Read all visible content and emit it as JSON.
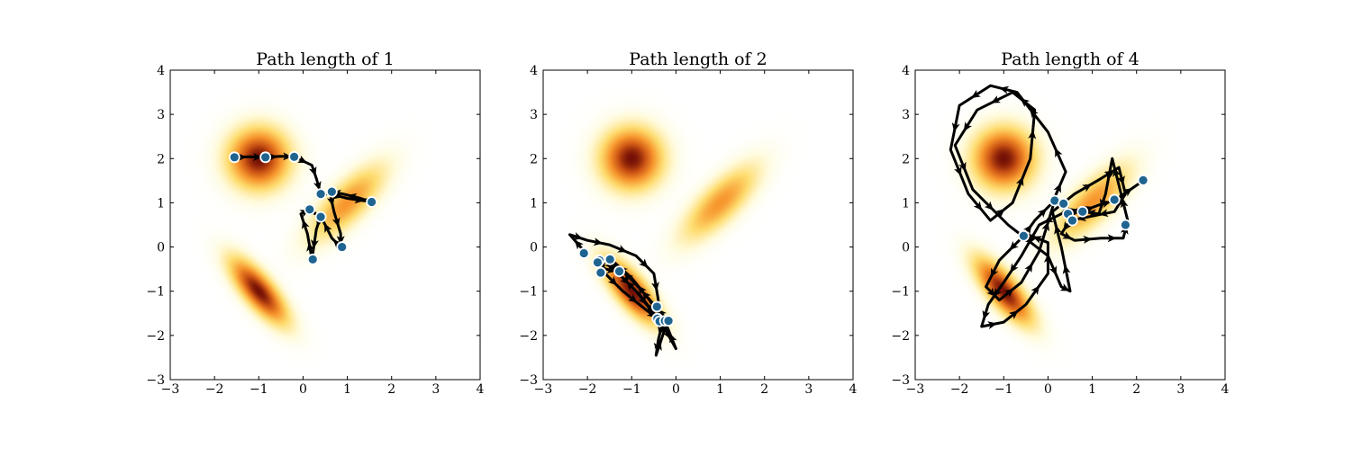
{
  "chart_data": [
    {
      "type": "scatter",
      "title": "Path length of 1",
      "xlabel": "",
      "ylabel": "",
      "xlim": [
        -3,
        4
      ],
      "ylim": [
        -3,
        4
      ],
      "xticks": [
        "−3",
        "−2",
        "−1",
        "0",
        "1",
        "2",
        "3",
        "4"
      ],
      "yticks": [
        "−3",
        "−2",
        "−1",
        "0",
        "1",
        "2",
        "3",
        "4"
      ],
      "grid": false,
      "background": "density heatmap (three Gaussian modes, yellow-orange-dark red colormap)",
      "modes": [
        {
          "cx": -1.0,
          "cy": 2.0,
          "sx": 0.45,
          "sy": 0.45,
          "rot": 0,
          "peak": 1.0
        },
        {
          "cx": 1.0,
          "cy": 1.0,
          "sx": 0.75,
          "sy": 0.28,
          "rot": 45,
          "peak": 0.55
        },
        {
          "cx": -1.0,
          "cy": -1.0,
          "sx": 0.6,
          "sy": 0.22,
          "rot": -50,
          "peak": 1.0
        }
      ],
      "path": [
        [
          -1.55,
          2.03
        ],
        [
          -1.2,
          2.04
        ],
        [
          -0.85,
          2.03
        ],
        [
          -0.5,
          2.05
        ],
        [
          -0.2,
          2.04
        ],
        [
          0.2,
          1.85
        ],
        [
          0.3,
          1.55
        ],
        [
          0.4,
          1.2
        ],
        [
          0.6,
          1.2
        ],
        [
          1.0,
          1.1
        ],
        [
          1.55,
          1.02
        ],
        [
          1.3,
          1.1
        ],
        [
          0.9,
          1.2
        ],
        [
          0.6,
          1.25
        ],
        [
          0.7,
          0.8
        ],
        [
          0.85,
          0.3
        ],
        [
          0.85,
          0.0
        ],
        [
          0.65,
          0.2
        ],
        [
          0.4,
          0.7
        ],
        [
          0.3,
          0.4
        ],
        [
          0.2,
          -0.28
        ],
        [
          0.1,
          0.3
        ],
        [
          -0.05,
          0.75
        ],
        [
          0.15,
          0.85
        ],
        [
          0.35,
          0.7
        ]
      ],
      "points": [
        [
          -1.55,
          2.03
        ],
        [
          -0.85,
          2.03
        ],
        [
          -0.2,
          2.04
        ],
        [
          0.4,
          1.2
        ],
        [
          0.65,
          1.25
        ],
        [
          1.55,
          1.02
        ],
        [
          0.15,
          0.85
        ],
        [
          0.4,
          0.68
        ],
        [
          0.88,
          0.0
        ],
        [
          0.22,
          -0.28
        ]
      ],
      "colors": {
        "path": "#000000",
        "point_fill": "#1f6490",
        "point_edge": "#ffffff"
      }
    },
    {
      "type": "scatter",
      "title": "Path length of 2",
      "xlabel": "",
      "ylabel": "",
      "xlim": [
        -3,
        4
      ],
      "ylim": [
        -3,
        4
      ],
      "xticks": [
        "−3",
        "−2",
        "−1",
        "0",
        "1",
        "2",
        "3",
        "4"
      ],
      "yticks": [
        "−3",
        "−2",
        "−1",
        "0",
        "1",
        "2",
        "3",
        "4"
      ],
      "grid": false,
      "background": "density heatmap (three Gaussian modes, yellow-orange-dark red colormap)",
      "modes": [
        {
          "cx": -1.0,
          "cy": 2.0,
          "sx": 0.45,
          "sy": 0.45,
          "rot": 0,
          "peak": 1.0
        },
        {
          "cx": 1.0,
          "cy": 1.0,
          "sx": 0.75,
          "sy": 0.28,
          "rot": 45,
          "peak": 0.55
        },
        {
          "cx": -1.0,
          "cy": -1.0,
          "sx": 0.6,
          "sy": 0.22,
          "rot": -50,
          "peak": 1.0
        }
      ],
      "path": [
        [
          -2.05,
          -0.12
        ],
        [
          -2.4,
          0.28
        ],
        [
          -2.0,
          0.15
        ],
        [
          -1.5,
          0.05
        ],
        [
          -0.9,
          -0.2
        ],
        [
          -0.5,
          -0.6
        ],
        [
          -0.4,
          -1.2
        ],
        [
          -0.42,
          -1.6
        ],
        [
          -0.8,
          -1.1
        ],
        [
          -1.3,
          -0.6
        ],
        [
          -1.6,
          -0.3
        ],
        [
          -1.35,
          -0.55
        ],
        [
          -0.9,
          -1.0
        ],
        [
          -0.55,
          -1.45
        ],
        [
          -0.3,
          -1.7
        ],
        [
          -0.4,
          -2.1
        ],
        [
          -0.45,
          -2.45
        ],
        [
          -0.3,
          -2.0
        ],
        [
          -0.2,
          -1.65
        ],
        [
          -0.5,
          -1.3
        ],
        [
          -0.9,
          -0.85
        ],
        [
          -1.3,
          -0.45
        ],
        [
          -1.7,
          -0.25
        ],
        [
          -1.6,
          -0.6
        ],
        [
          -1.2,
          -1.0
        ],
        [
          -0.7,
          -1.4
        ],
        [
          -0.35,
          -1.68
        ],
        [
          0.0,
          -2.3
        ],
        [
          -0.2,
          -1.8
        ],
        [
          -0.6,
          -1.2
        ],
        [
          -1.0,
          -0.7
        ],
        [
          -1.45,
          -0.3
        ],
        [
          -1.8,
          -0.3
        ],
        [
          -1.6,
          -0.5
        ],
        [
          -1.3,
          -0.55
        ]
      ],
      "points": [
        [
          -2.08,
          -0.14
        ],
        [
          -1.73,
          -0.3
        ],
        [
          -1.77,
          -0.35
        ],
        [
          -1.49,
          -0.28
        ],
        [
          -1.7,
          -0.58
        ],
        [
          -1.28,
          -0.55
        ],
        [
          -0.43,
          -1.35
        ],
        [
          -0.42,
          -1.62
        ],
        [
          -0.37,
          -1.68
        ],
        [
          -0.25,
          -1.67
        ],
        [
          -0.17,
          -1.67
        ]
      ],
      "colors": {
        "path": "#000000",
        "point_fill": "#1f6490",
        "point_edge": "#ffffff"
      }
    },
    {
      "type": "scatter",
      "title": "Path length of 4",
      "xlabel": "",
      "ylabel": "",
      "xlim": [
        -3,
        4
      ],
      "ylim": [
        -3,
        4
      ],
      "xticks": [
        "−3",
        "−2",
        "−1",
        "0",
        "1",
        "2",
        "3",
        "4"
      ],
      "yticks": [
        "−3",
        "−2",
        "−1",
        "0",
        "1",
        "2",
        "3",
        "4"
      ],
      "grid": false,
      "background": "density heatmap (three Gaussian modes, yellow-orange-dark red colormap)",
      "modes": [
        {
          "cx": -1.0,
          "cy": 2.0,
          "sx": 0.45,
          "sy": 0.45,
          "rot": 0,
          "peak": 1.0
        },
        {
          "cx": 1.0,
          "cy": 1.0,
          "sx": 0.75,
          "sy": 0.28,
          "rot": 45,
          "peak": 0.55
        },
        {
          "cx": -1.0,
          "cy": -1.0,
          "sx": 0.6,
          "sy": 0.22,
          "rot": -50,
          "peak": 1.0
        }
      ],
      "path": [
        [
          -0.55,
          0.25
        ],
        [
          -0.3,
          0.6
        ],
        [
          0.1,
          1.0
        ],
        [
          0.4,
          1.7
        ],
        [
          0.0,
          2.6
        ],
        [
          -0.7,
          3.5
        ],
        [
          -1.3,
          3.65
        ],
        [
          -2.0,
          3.2
        ],
        [
          -2.2,
          2.2
        ],
        [
          -1.8,
          1.2
        ],
        [
          -1.3,
          0.6
        ],
        [
          -0.8,
          1.0
        ],
        [
          -0.4,
          2.0
        ],
        [
          -0.3,
          3.1
        ],
        [
          -0.8,
          3.5
        ],
        [
          -1.6,
          3.1
        ],
        [
          -2.1,
          2.3
        ],
        [
          -1.7,
          1.3
        ],
        [
          -0.9,
          0.5
        ],
        [
          0.0,
          -0.2
        ],
        [
          0.3,
          -0.9
        ],
        [
          0.5,
          -1.0
        ],
        [
          0.3,
          0.0
        ],
        [
          0.1,
          0.8
        ],
        [
          0.6,
          1.2
        ],
        [
          1.2,
          1.55
        ],
        [
          1.6,
          1.8
        ],
        [
          1.75,
          1.2
        ],
        [
          1.5,
          0.8
        ],
        [
          1.0,
          0.7
        ],
        [
          0.5,
          0.6
        ],
        [
          0.3,
          0.3
        ],
        [
          0.6,
          0.15
        ],
        [
          1.2,
          0.2
        ],
        [
          1.7,
          0.2
        ],
        [
          1.8,
          0.6
        ],
        [
          1.6,
          1.4
        ],
        [
          1.45,
          2.0
        ],
        [
          1.3,
          1.2
        ],
        [
          1.15,
          0.75
        ],
        [
          0.8,
          0.8
        ],
        [
          0.5,
          0.85
        ],
        [
          0.2,
          0.7
        ],
        [
          -0.2,
          0.5
        ],
        [
          -0.6,
          -0.2
        ],
        [
          -1.0,
          -0.8
        ],
        [
          -1.35,
          -1.3
        ],
        [
          -1.5,
          -1.8
        ],
        [
          -1.0,
          -1.7
        ],
        [
          -0.5,
          -1.3
        ],
        [
          0.0,
          -0.6
        ],
        [
          0.0,
          0.1
        ],
        [
          -0.5,
          0.3
        ],
        [
          -1.1,
          -0.3
        ],
        [
          -1.4,
          -0.9
        ],
        [
          -1.1,
          -1.2
        ],
        [
          -0.6,
          -0.8
        ],
        [
          -0.2,
          -0.1
        ],
        [
          0.15,
          1.05
        ],
        [
          0.35,
          0.95
        ],
        [
          0.55,
          0.6
        ],
        [
          0.45,
          0.75
        ],
        [
          0.75,
          0.8
        ],
        [
          1.15,
          0.95
        ],
        [
          1.5,
          1.05
        ],
        [
          2.15,
          1.5
        ]
      ],
      "points": [
        [
          -0.55,
          0.25
        ],
        [
          0.15,
          1.05
        ],
        [
          0.35,
          0.98
        ],
        [
          0.45,
          0.75
        ],
        [
          0.55,
          0.6
        ],
        [
          0.78,
          0.8
        ],
        [
          1.5,
          1.07
        ],
        [
          2.15,
          1.51
        ],
        [
          1.75,
          0.5
        ]
      ],
      "colors": {
        "path": "#000000",
        "point_fill": "#1f6490",
        "point_edge": "#ffffff"
      }
    }
  ]
}
